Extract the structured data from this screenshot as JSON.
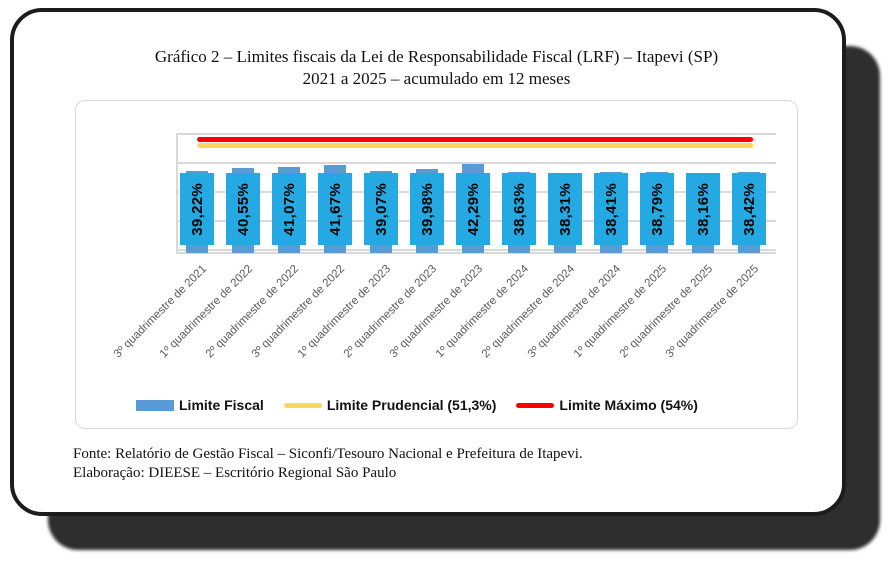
{
  "title": {
    "line1": "Gráfico 2 – Limites fiscais da Lei de Responsabilidade Fiscal (LRF) – Itapevi (SP)",
    "line2": "2021 a 2025 – acumulado em 12 meses"
  },
  "footer": {
    "source": "Fonte: Relatório de Gestão Fiscal – Siconfi/Tesouro Nacional e Prefeitura de Itapevi.",
    "elaboration": "Elaboração: DIEESE – Escritório Regional São Paulo"
  },
  "legend": [
    {
      "label": "Limite Fiscal",
      "swatch": "bar",
      "color": "#5B9BD5"
    },
    {
      "label": "Limite Prudencial (51,3%)",
      "swatch": "line",
      "color": "#FFD45E"
    },
    {
      "label": "Limite Máximo (54%)",
      "swatch": "line",
      "color": "#FF0000"
    }
  ],
  "chart_data": {
    "type": "bar",
    "title": "Gráfico 2 – Limites fiscais da Lei de Responsabilidade Fiscal (LRF) – Itapevi (SP) 2021 a 2025 – acumulado em 12 meses",
    "categories": [
      "3º quadrimestre de 2021",
      "1º quadrimestre de 2022",
      "2º quadrimestre de 2022",
      "3º quadrimestre de 2022",
      "1º quadrimestre de 2023",
      "2º quadrimestre de 2023",
      "3º quadrimestre de 2023",
      "1º quadrimestre de 2024",
      "2º quadrimestre de 2024",
      "3º quadrimestre de 2024",
      "1º quadrimestre de 2025",
      "2º quadrimestre de 2025",
      "3º quadrimestre de 2025"
    ],
    "series": [
      {
        "name": "Limite Fiscal",
        "type": "bar",
        "values": [
          39.22,
          40.55,
          41.07,
          41.67,
          39.07,
          39.98,
          42.29,
          38.63,
          38.31,
          38.41,
          38.79,
          38.16,
          38.42
        ],
        "data_labels": [
          "39,22%",
          "40,55%",
          "41,07%",
          "41,67%",
          "39,07%",
          "39,98%",
          "42,29%",
          "38,63%",
          "38,31%",
          "38,41%",
          "38,79%",
          "38,16%",
          "38,42%"
        ],
        "bar_color": "#5B9BD5",
        "label_fill": "#25A9E2",
        "label_text_color": "#000000"
      },
      {
        "name": "Limite Prudencial (51,3%)",
        "type": "line",
        "value": 51.3,
        "color": "#FFD45E"
      },
      {
        "name": "Limite Máximo (54%)",
        "type": "line",
        "value": 54,
        "color": "#FF0000"
      }
    ],
    "ylim": [
      0,
      57
    ],
    "grid": "horizontal",
    "gridline_color": "#D9D9D9",
    "category_label_color": "#595959",
    "legend_position": "bottom"
  }
}
